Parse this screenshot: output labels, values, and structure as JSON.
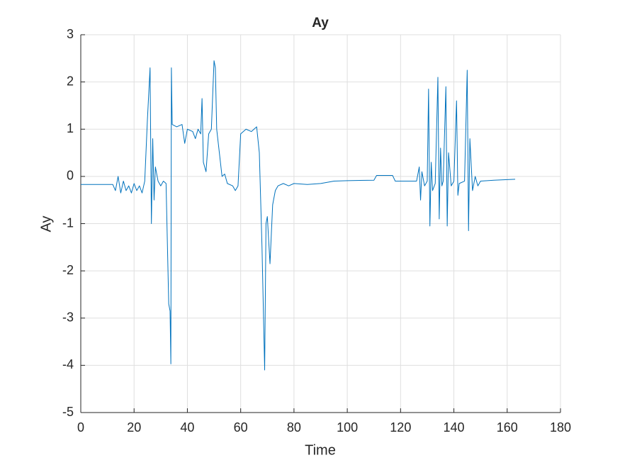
{
  "chart_data": {
    "type": "line",
    "title": "Ay",
    "xlabel": "Time",
    "ylabel": "Ay",
    "xlim": [
      0,
      180
    ],
    "ylim": [
      -5,
      3
    ],
    "xticks": [
      0,
      20,
      40,
      60,
      80,
      100,
      120,
      140,
      160,
      180
    ],
    "yticks": [
      -5,
      -4,
      -3,
      -2,
      -1,
      0,
      1,
      2,
      3
    ],
    "grid": true,
    "series": [
      {
        "name": "Ay",
        "color": "#0072bd",
        "x": [
          0,
          12,
          13,
          14,
          15,
          16,
          17,
          18,
          19,
          20,
          21,
          22,
          23,
          24,
          25,
          26,
          26.5,
          27,
          27.5,
          28,
          29,
          30,
          31,
          32,
          33,
          33.5,
          33.8,
          34,
          34.3,
          36,
          38,
          39,
          40,
          42,
          43,
          44,
          45,
          45.5,
          46,
          47,
          48,
          49,
          50,
          50.5,
          51,
          52,
          53,
          54,
          55,
          57,
          58,
          59,
          60,
          62,
          64,
          66,
          67,
          68,
          69,
          69.5,
          70,
          71,
          72,
          73,
          74,
          76,
          78,
          80,
          85,
          90,
          93,
          95,
          100,
          110,
          111,
          117,
          118,
          126,
          127,
          127.5,
          128,
          129,
          130,
          130.5,
          131,
          131.5,
          132,
          133,
          134,
          134.5,
          135,
          135.5,
          136,
          137,
          137.5,
          138,
          139,
          140,
          141,
          141.5,
          142,
          144,
          145,
          145.5,
          146,
          147,
          148,
          149,
          150,
          155,
          163
        ],
        "values": [
          -0.17,
          -0.17,
          -0.3,
          0.0,
          -0.35,
          -0.1,
          -0.3,
          -0.2,
          -0.35,
          -0.15,
          -0.3,
          -0.2,
          -0.35,
          -0.1,
          1.2,
          2.3,
          -1.0,
          0.8,
          -0.5,
          0.2,
          -0.1,
          -0.2,
          -0.1,
          -0.15,
          -2.7,
          -2.85,
          -3.97,
          2.3,
          1.1,
          1.05,
          1.1,
          0.7,
          1.0,
          0.95,
          0.8,
          1.0,
          0.9,
          1.65,
          0.3,
          0.1,
          0.9,
          1.0,
          2.45,
          2.3,
          1.0,
          0.5,
          0.0,
          0.05,
          -0.15,
          -0.2,
          -0.3,
          -0.2,
          0.9,
          1.0,
          0.95,
          1.05,
          0.5,
          -1.5,
          -4.1,
          -1.0,
          -0.85,
          -1.85,
          -0.6,
          -0.3,
          -0.2,
          -0.15,
          -0.2,
          -0.15,
          -0.17,
          -0.15,
          -0.12,
          -0.1,
          -0.09,
          -0.08,
          0.02,
          0.02,
          -0.1,
          -0.1,
          0.2,
          -0.5,
          0.1,
          -0.2,
          -0.1,
          1.85,
          -1.05,
          0.3,
          -0.3,
          -0.15,
          2.1,
          -0.9,
          0.6,
          -0.2,
          -0.1,
          1.9,
          -1.05,
          0.5,
          -0.2,
          -0.1,
          1.6,
          -0.4,
          -0.15,
          -0.1,
          2.25,
          -1.15,
          0.8,
          -0.3,
          0.0,
          -0.2,
          -0.1,
          -0.08,
          -0.06
        ]
      }
    ]
  }
}
